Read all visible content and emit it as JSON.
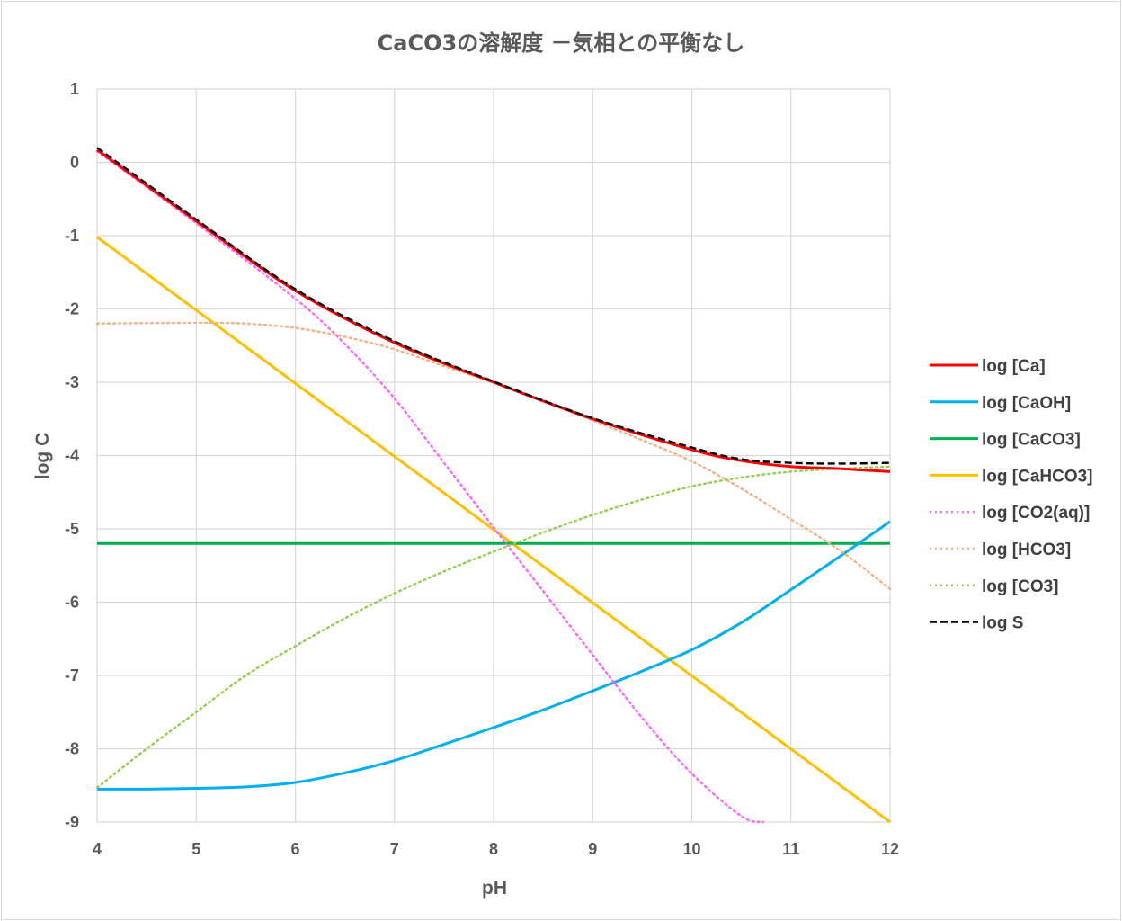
{
  "chart_data": {
    "type": "line",
    "title": "CaCO3の溶解度 －気相との平衡なし",
    "xlabel": "pH",
    "ylabel": "log C",
    "xlim": [
      4,
      12
    ],
    "ylim": [
      -9,
      1
    ],
    "xticks": [
      "4",
      "5",
      "6",
      "7",
      "8",
      "9",
      "10",
      "11",
      "12"
    ],
    "yticks": [
      "1",
      "0",
      "-1",
      "-2",
      "-3",
      "-4",
      "-5",
      "-6",
      "-7",
      "-8",
      "-9"
    ],
    "grid": true,
    "legend_position": "right",
    "x": [
      4,
      5,
      6,
      7,
      8,
      9,
      10,
      11,
      12
    ],
    "series": [
      {
        "name": "log [Ca]",
        "color": "#ff0000",
        "style": "solid",
        "x": [
          4,
          5,
          6,
          7,
          8,
          9,
          10,
          10.5,
          11,
          11.5,
          12
        ],
        "values": [
          0.17,
          -0.8,
          -1.75,
          -2.46,
          -3.0,
          -3.5,
          -3.92,
          -4.07,
          -4.15,
          -4.18,
          -4.22
        ]
      },
      {
        "name": "log [CaOH]",
        "color": "#00b0f0",
        "style": "solid",
        "x": [
          4,
          4.5,
          5,
          5.5,
          6,
          6.5,
          7,
          7.5,
          8,
          8.5,
          9,
          9.5,
          10,
          10.5,
          11,
          11.5,
          12
        ],
        "values": [
          -8.55,
          -8.55,
          -8.54,
          -8.52,
          -8.46,
          -8.33,
          -8.16,
          -7.94,
          -7.71,
          -7.47,
          -7.21,
          -6.94,
          -6.65,
          -6.28,
          -5.83,
          -5.37,
          -4.9
        ]
      },
      {
        "name": "log [CaCO3]",
        "color": "#00b050",
        "style": "solid",
        "x": [
          4,
          12
        ],
        "values": [
          -5.2,
          -5.2
        ]
      },
      {
        "name": "log [CaHCO3]",
        "color": "#ffc000",
        "style": "solid",
        "x": [
          4,
          12
        ],
        "values": [
          -1.02,
          -9.0
        ]
      },
      {
        "name": "log [CO2(aq)]",
        "color": "#ff66ff",
        "style": "dotted",
        "x": [
          4,
          5,
          6,
          6.5,
          7,
          7.5,
          8,
          8.5,
          9,
          9.5,
          10,
          10.5,
          10.72
        ],
        "values": [
          0.15,
          -0.83,
          -1.86,
          -2.48,
          -3.22,
          -4.1,
          -4.98,
          -5.85,
          -6.72,
          -7.58,
          -8.34,
          -8.92,
          -9.0
        ]
      },
      {
        "name": "log [HCO3]",
        "color": "#f4b183",
        "style": "dotted",
        "x": [
          4,
          5,
          5.5,
          6,
          6.5,
          7,
          7.5,
          8,
          8.5,
          9,
          9.5,
          10,
          10.5,
          11,
          11.5,
          12
        ],
        "values": [
          -2.2,
          -2.19,
          -2.2,
          -2.26,
          -2.38,
          -2.55,
          -2.78,
          -3.0,
          -3.25,
          -3.52,
          -3.79,
          -4.08,
          -4.45,
          -4.87,
          -5.3,
          -5.82
        ]
      },
      {
        "name": "log [CO3]",
        "color": "#92d050",
        "style": "dotted",
        "x": [
          4,
          4.5,
          5,
          5.5,
          6,
          6.5,
          7,
          7.5,
          8,
          8.5,
          9,
          9.5,
          10,
          10.5,
          11,
          11.5,
          12
        ],
        "values": [
          -8.53,
          -8.0,
          -7.5,
          -7.0,
          -6.6,
          -6.22,
          -5.88,
          -5.58,
          -5.31,
          -5.05,
          -4.81,
          -4.6,
          -4.42,
          -4.3,
          -4.22,
          -4.18,
          -4.15
        ]
      },
      {
        "name": "log S",
        "color": "#000000",
        "style": "dashed",
        "x": [
          4,
          5,
          6,
          7,
          8,
          9,
          10,
          10.5,
          11,
          11.5,
          12
        ],
        "values": [
          0.2,
          -0.78,
          -1.73,
          -2.44,
          -2.99,
          -3.49,
          -3.89,
          -4.05,
          -4.1,
          -4.11,
          -4.1
        ]
      }
    ]
  }
}
